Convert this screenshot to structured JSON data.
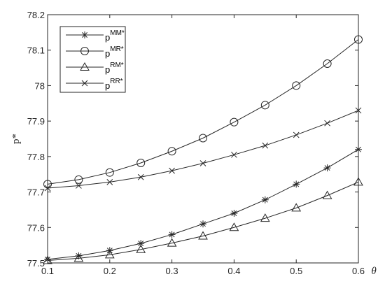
{
  "chart_data": {
    "type": "line",
    "xlabel": "θ",
    "ylabel": "p*",
    "xlim": [
      0.1,
      0.6
    ],
    "ylim": [
      77.5,
      78.2
    ],
    "x_ticks": [
      "0.1",
      "0.2",
      "0.3",
      "0.4",
      "0.5",
      "0.6"
    ],
    "y_ticks": [
      "77.5",
      "77.6",
      "77.7",
      "77.8",
      "77.9",
      "78",
      "78.1",
      "78.2"
    ],
    "grid": false,
    "legend_placement": "top-left",
    "x": [
      0.1,
      0.15,
      0.2,
      0.25,
      0.3,
      0.35,
      0.4,
      0.45,
      0.5,
      0.55,
      0.6
    ],
    "series": [
      {
        "name": "p^{MM*}",
        "base": "p",
        "sup": "MM*",
        "marker": "star",
        "values": [
          77.51,
          77.52,
          77.535,
          77.555,
          77.58,
          77.61,
          77.64,
          77.678,
          77.722,
          77.768,
          77.82
        ]
      },
      {
        "name": "p^{MR*}",
        "base": "p",
        "sup": "MR*",
        "marker": "circle",
        "values": [
          77.722,
          77.735,
          77.755,
          77.782,
          77.815,
          77.852,
          77.897,
          77.945,
          78.0,
          78.062,
          78.13
        ]
      },
      {
        "name": "p^{RM*}",
        "base": "p",
        "sup": "RM*",
        "marker": "triangle",
        "values": [
          77.507,
          77.513,
          77.523,
          77.538,
          77.556,
          77.576,
          77.6,
          77.626,
          77.655,
          77.69,
          77.728
        ]
      },
      {
        "name": "p^{RR*}",
        "base": "p",
        "sup": "RR*",
        "marker": "x",
        "values": [
          77.711,
          77.718,
          77.728,
          77.742,
          77.76,
          77.781,
          77.805,
          77.831,
          77.861,
          77.894,
          77.93
        ]
      }
    ]
  }
}
